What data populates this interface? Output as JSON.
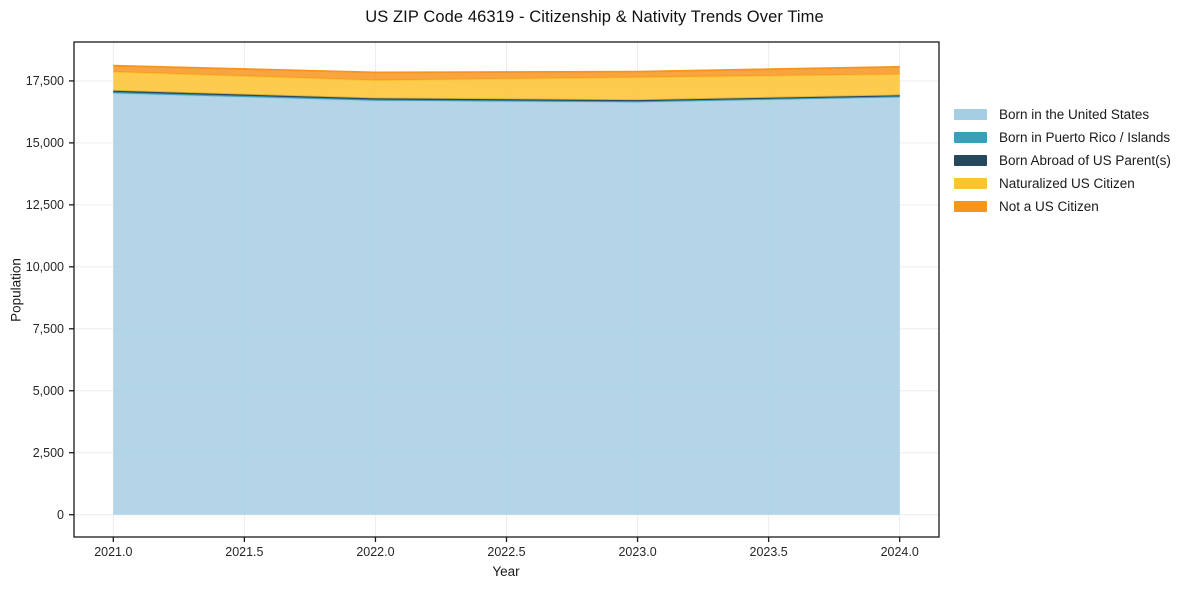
{
  "chart_data": {
    "type": "area",
    "stacked": true,
    "title": "US ZIP Code 46319 - Citizenship & Nativity Trends Over Time",
    "xlabel": "Year",
    "ylabel": "Population",
    "x": [
      2021,
      2022,
      2023,
      2024
    ],
    "series": [
      {
        "name": "Born in the United States",
        "color": "#a6cee3",
        "values": [
          17000,
          16700,
          16640,
          16840
        ]
      },
      {
        "name": "Born in Puerto Rico / Islands",
        "color": "#39a0b9",
        "values": [
          50,
          45,
          40,
          40
        ]
      },
      {
        "name": "Born Abroad of US Parent(s)",
        "color": "#26485c",
        "values": [
          55,
          50,
          45,
          40
        ]
      },
      {
        "name": "Naturalized US Citizen",
        "color": "#fdc330",
        "values": [
          760,
          730,
          920,
          850
        ]
      },
      {
        "name": "Not a US Citizen",
        "color": "#f7941e",
        "values": [
          250,
          320,
          230,
          300
        ]
      }
    ],
    "x_ticks": [
      "2021.0",
      "2021.5",
      "2022.0",
      "2022.5",
      "2023.0",
      "2023.5",
      "2024.0"
    ],
    "x_tick_values": [
      2021.0,
      2021.5,
      2022.0,
      2022.5,
      2023.0,
      2023.5,
      2024.0
    ],
    "y_ticks": [
      "0",
      "2,500",
      "5,000",
      "7,500",
      "10,000",
      "12,500",
      "15,000",
      "17,500"
    ],
    "y_tick_values": [
      0,
      2500,
      5000,
      7500,
      10000,
      12500,
      15000,
      17500
    ],
    "x_range": [
      2020.85,
      2024.15
    ],
    "y_range": [
      -900,
      19070
    ],
    "grid": true,
    "legend_position": "right",
    "colors": {
      "frame": "#1a1a1a",
      "gridline": "#e9edf0",
      "tick_label": "#262626",
      "background": "#ffffff"
    }
  }
}
